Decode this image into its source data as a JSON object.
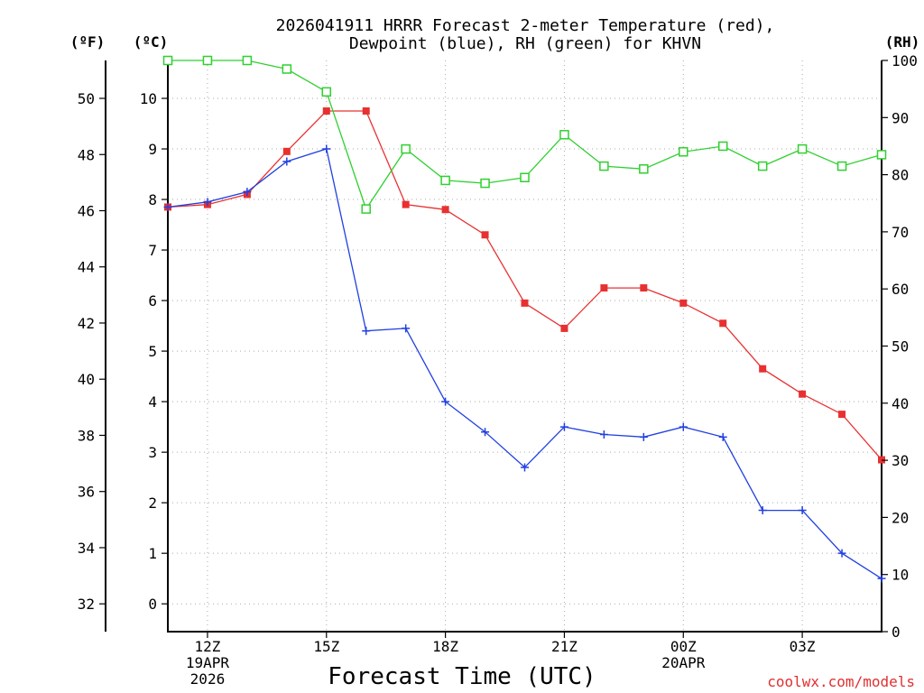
{
  "chart_data": {
    "type": "line",
    "title_line1": "2026041911 HRRR Forecast 2-meter Temperature (red),",
    "title_line2": "Dewpoint (blue), RH (green) for KHVN",
    "xlabel": "Forecast Time (UTC)",
    "credit": "coolwx.com/models",
    "unit_f": "(ºF)",
    "unit_c": "(ºC)",
    "unit_rh": "(RH)",
    "x_hours": [
      11,
      12,
      13,
      14,
      15,
      16,
      17,
      18,
      19,
      20,
      21,
      22,
      23,
      24,
      25,
      26,
      27,
      28,
      29
    ],
    "x_ticks": [
      {
        "hour": 12,
        "lines": [
          "12Z",
          "19APR",
          "2026"
        ]
      },
      {
        "hour": 15,
        "lines": [
          "15Z"
        ]
      },
      {
        "hour": 18,
        "lines": [
          "18Z"
        ]
      },
      {
        "hour": 21,
        "lines": [
          "21Z"
        ]
      },
      {
        "hour": 24,
        "lines": [
          "00Z",
          "20APR"
        ]
      },
      {
        "hour": 27,
        "lines": [
          "03Z"
        ]
      }
    ],
    "xlim": [
      11,
      29
    ],
    "celsius_ylim": [
      -0.55,
      10.75
    ],
    "celsius_ticks": [
      0,
      1,
      2,
      3,
      4,
      5,
      6,
      7,
      8,
      9,
      10
    ],
    "fahrenheit_ticks": [
      32,
      34,
      36,
      38,
      40,
      42,
      44,
      46,
      48,
      50
    ],
    "rh_ylim": [
      0,
      100
    ],
    "rh_ticks": [
      0,
      10,
      20,
      30,
      40,
      50,
      60,
      70,
      80,
      90,
      100
    ],
    "grid": true,
    "series": [
      {
        "name": "Temperature",
        "color": "#e83030",
        "marker": "filled-square",
        "axis": "celsius",
        "values": [
          7.85,
          7.9,
          8.1,
          8.95,
          9.75,
          9.75,
          7.9,
          7.8,
          7.3,
          5.95,
          5.45,
          6.25,
          6.25,
          5.95,
          5.55,
          4.65,
          4.15,
          3.75,
          2.85
        ]
      },
      {
        "name": "Dewpoint",
        "color": "#2040e0",
        "marker": "plus",
        "axis": "celsius",
        "values": [
          7.85,
          7.95,
          8.15,
          8.75,
          9.0,
          5.4,
          5.45,
          4.0,
          3.4,
          2.7,
          3.5,
          3.35,
          3.3,
          3.5,
          3.3,
          1.85,
          1.85,
          1.0,
          0.5
        ]
      },
      {
        "name": "RH",
        "color": "#30d030",
        "marker": "open-square",
        "axis": "rh",
        "values": [
          100,
          100,
          100,
          98.5,
          94.5,
          74,
          84.5,
          79,
          78.5,
          79.5,
          87,
          81.5,
          81,
          84,
          85,
          81.5,
          84.5,
          81.5,
          83.5
        ]
      }
    ]
  }
}
